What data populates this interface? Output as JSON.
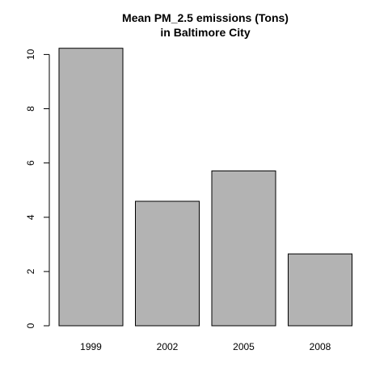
{
  "chart_data": {
    "type": "bar",
    "title": "Mean PM_2.5 emissions (Tons)",
    "subtitle": "in Baltimore City",
    "categories": [
      "1999",
      "2002",
      "2005",
      "2008"
    ],
    "values": [
      10.23,
      4.59,
      5.71,
      2.65
    ],
    "xlabel": "",
    "ylabel": "",
    "yticks": [
      0,
      2,
      4,
      6,
      8,
      10
    ],
    "ylim": [
      0,
      10.25
    ],
    "bar_color": "#b3b3b3",
    "grid": false,
    "legend": "none"
  }
}
